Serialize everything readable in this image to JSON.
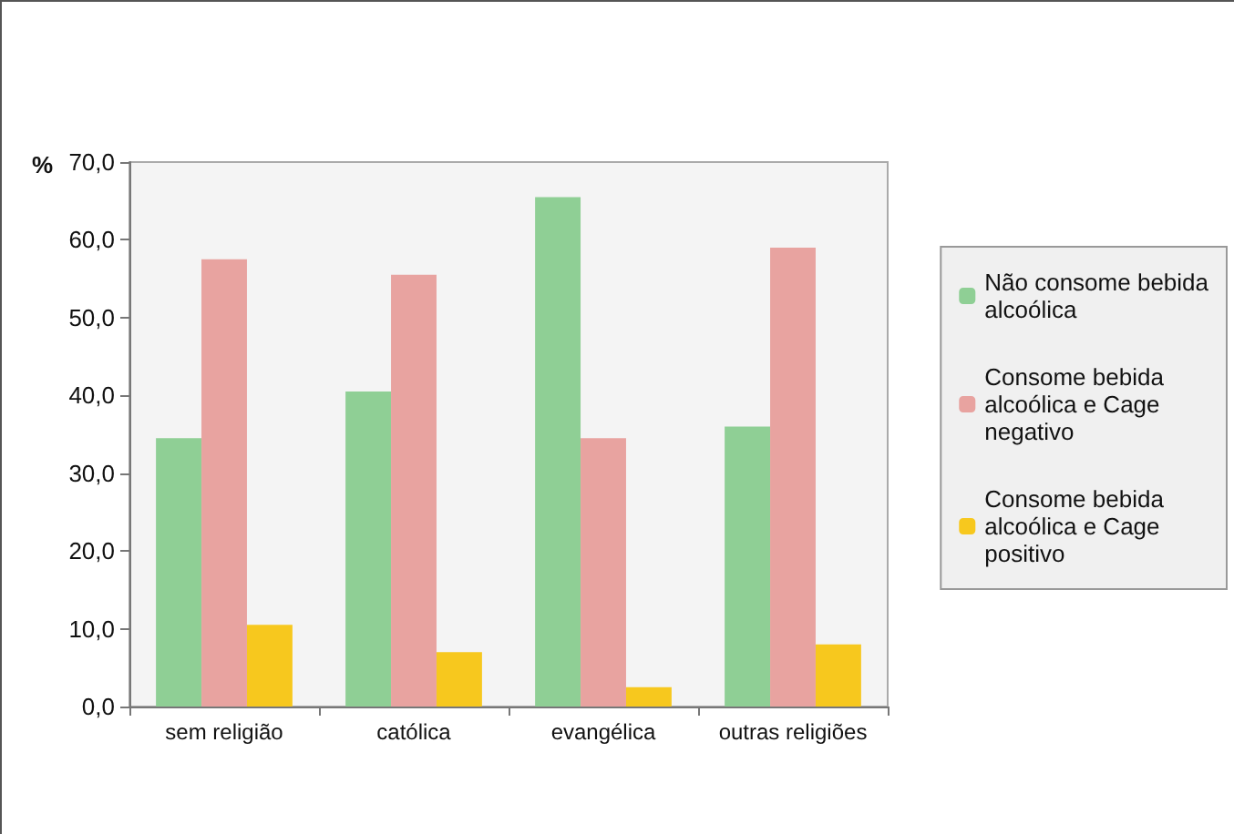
{
  "chart_data": {
    "type": "bar",
    "ylabel": "%",
    "categories": [
      "sem religião",
      "católica",
      "evangélica",
      "outras religiões"
    ],
    "series": [
      {
        "name": "Não consome bebida alcoólica",
        "color": "#8fcf95",
        "values": [
          34.5,
          40.5,
          65.5,
          36
        ]
      },
      {
        "name": "Consome bebida alcoólica e Cage negativo",
        "color": "#e8a3a0",
        "values": [
          57.5,
          55.5,
          34.5,
          59
        ]
      },
      {
        "name": "Consome bebida alcoólica e Cage positivo",
        "color": "#f7c81e",
        "values": [
          10.5,
          7,
          2.5,
          8
        ]
      }
    ],
    "ylim": [
      0,
      70
    ],
    "yticks": [
      {
        "value": 0,
        "label": "0,0"
      },
      {
        "value": 10,
        "label": "10,0"
      },
      {
        "value": 20,
        "label": "20,0"
      },
      {
        "value": 30,
        "label": "30,0"
      },
      {
        "value": 40,
        "label": "40,0"
      },
      {
        "value": 50,
        "label": "50,0"
      },
      {
        "value": 60,
        "label": "60,0"
      },
      {
        "value": 70,
        "label": "70,0"
      }
    ],
    "grid": false,
    "legend": "right"
  }
}
